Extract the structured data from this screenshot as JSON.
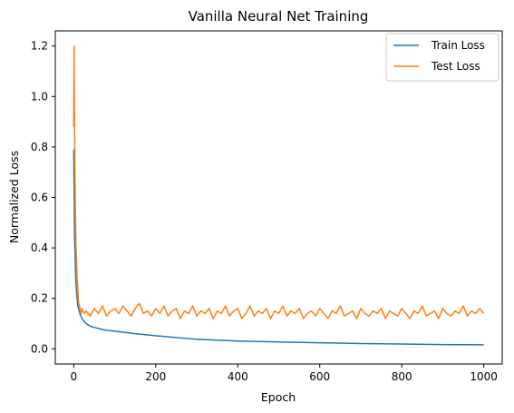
{
  "chart_data": {
    "type": "line",
    "title": "Vanilla Neural Net Training",
    "xlabel": "Epoch",
    "ylabel": "Normalized Loss",
    "xlim": [
      -45,
      1045
    ],
    "ylim": [
      -0.06,
      1.26
    ],
    "xticks": [
      0,
      200,
      400,
      600,
      800,
      1000
    ],
    "yticks": [
      0.0,
      0.2,
      0.4,
      0.6,
      0.8,
      1.0,
      1.2
    ],
    "ytick_labels": [
      "0.0",
      "0.2",
      "0.4",
      "0.6",
      "0.8",
      "1.0",
      "1.2"
    ],
    "grid": false,
    "legend": "top-right",
    "series": [
      {
        "name": "Train Loss",
        "color": "#1f77b4",
        "x": [
          0,
          2,
          5,
          8,
          10,
          15,
          20,
          25,
          30,
          40,
          50,
          75,
          100,
          150,
          200,
          250,
          300,
          400,
          500,
          600,
          700,
          800,
          900,
          1000
        ],
        "y": [
          0.79,
          0.45,
          0.27,
          0.2,
          0.17,
          0.14,
          0.12,
          0.11,
          0.1,
          0.09,
          0.085,
          0.075,
          0.07,
          0.06,
          0.052,
          0.045,
          0.038,
          0.031,
          0.027,
          0.024,
          0.021,
          0.019,
          0.017,
          0.016
        ]
      },
      {
        "name": "Test Loss",
        "color": "#ff7f0e",
        "x": [
          0,
          1,
          2,
          3,
          4,
          5,
          6,
          7,
          8,
          9,
          10,
          11,
          12,
          14,
          16,
          18,
          20,
          25,
          30,
          40,
          50,
          60,
          70,
          80,
          90,
          100,
          110,
          120,
          130,
          140,
          150,
          160,
          170,
          180,
          190,
          200,
          210,
          220,
          230,
          240,
          250,
          260,
          270,
          280,
          290,
          300,
          310,
          320,
          330,
          340,
          350,
          360,
          370,
          380,
          390,
          400,
          410,
          420,
          430,
          440,
          450,
          460,
          470,
          480,
          490,
          500,
          510,
          520,
          530,
          540,
          550,
          560,
          570,
          580,
          590,
          600,
          610,
          620,
          630,
          640,
          650,
          660,
          670,
          680,
          690,
          700,
          710,
          720,
          730,
          740,
          750,
          760,
          770,
          780,
          790,
          800,
          810,
          820,
          830,
          840,
          850,
          860,
          870,
          880,
          890,
          900,
          910,
          920,
          930,
          940,
          950,
          960,
          970,
          980,
          990,
          1000
        ],
        "y": [
          0.88,
          1.2,
          0.9,
          0.7,
          0.55,
          0.45,
          0.38,
          0.33,
          0.29,
          0.26,
          0.24,
          0.2,
          0.18,
          0.17,
          0.15,
          0.14,
          0.16,
          0.14,
          0.15,
          0.13,
          0.16,
          0.14,
          0.17,
          0.13,
          0.15,
          0.16,
          0.14,
          0.17,
          0.15,
          0.13,
          0.16,
          0.18,
          0.14,
          0.15,
          0.13,
          0.16,
          0.14,
          0.17,
          0.13,
          0.15,
          0.16,
          0.12,
          0.15,
          0.14,
          0.17,
          0.13,
          0.15,
          0.14,
          0.16,
          0.12,
          0.15,
          0.14,
          0.17,
          0.13,
          0.15,
          0.16,
          0.12,
          0.14,
          0.17,
          0.13,
          0.15,
          0.14,
          0.16,
          0.12,
          0.15,
          0.14,
          0.17,
          0.13,
          0.15,
          0.14,
          0.16,
          0.12,
          0.14,
          0.15,
          0.13,
          0.16,
          0.14,
          0.12,
          0.15,
          0.14,
          0.17,
          0.13,
          0.14,
          0.15,
          0.12,
          0.16,
          0.14,
          0.13,
          0.15,
          0.14,
          0.16,
          0.12,
          0.15,
          0.14,
          0.13,
          0.16,
          0.14,
          0.12,
          0.15,
          0.14,
          0.17,
          0.13,
          0.14,
          0.15,
          0.12,
          0.16,
          0.14,
          0.13,
          0.15,
          0.14,
          0.17,
          0.13,
          0.15,
          0.14,
          0.16,
          0.14
        ]
      }
    ]
  }
}
